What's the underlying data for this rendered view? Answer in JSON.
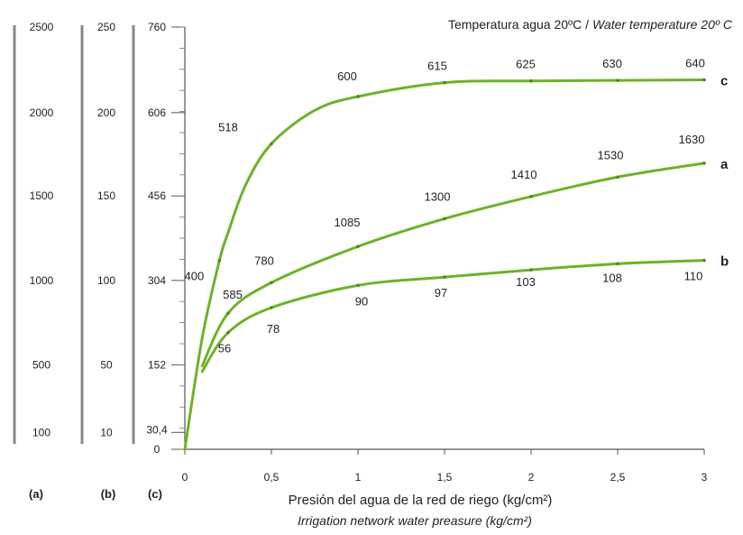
{
  "chart_data": {
    "type": "line",
    "title": "Temperatura agua 20ºC / ",
    "title_italic": "Water temperature 20º C",
    "xlabel": "Presión del agua de la red de riego (kg/cm²)",
    "xlabel_en": "Irrigation network water preasure (kg/cm²)",
    "x_ticks": [
      "0",
      "0,5",
      "1",
      "1,5",
      "2",
      "2,5",
      "3"
    ],
    "x_tick_values": [
      0,
      0.5,
      1,
      1.5,
      2,
      2.5,
      3
    ],
    "xlim": [
      0,
      3
    ],
    "y_scales": [
      {
        "name": "(a)",
        "ticks": [
          "100",
          "500",
          "1000",
          "1500",
          "2000",
          "2500"
        ],
        "tick_values": [
          30.4,
          152,
          304,
          456,
          606,
          760
        ]
      },
      {
        "name": "(b)",
        "ticks": [
          "10",
          "50",
          "100",
          "150",
          "200",
          "250"
        ],
        "tick_values": [
          30.4,
          152,
          304,
          456,
          606,
          760
        ]
      },
      {
        "name": "(c)",
        "ticks": [
          "0",
          "30,4",
          "152",
          "304",
          "456",
          "606",
          "760"
        ],
        "tick_values": [
          0,
          30.4,
          152,
          304,
          456,
          606,
          760
        ]
      }
    ],
    "ylim": [
      0,
      760
    ],
    "series": [
      {
        "name": "a",
        "color": "#6fb12b",
        "x": [
          0.1,
          0.25,
          0.5,
          1,
          1.5,
          2,
          2.5,
          3
        ],
        "y": [
          150,
          245,
          300,
          365,
          415,
          455,
          490,
          515
        ],
        "labels": [
          {
            "text": "585",
            "x": 0.25,
            "y": 245
          },
          {
            "text": "780",
            "x": 0.5,
            "y": 300
          },
          {
            "text": "1085",
            "x": 1,
            "y": 365
          },
          {
            "text": "1300",
            "x": 1.5,
            "y": 415
          },
          {
            "text": "1410",
            "x": 2,
            "y": 455
          },
          {
            "text": "1530",
            "x": 2.5,
            "y": 490
          },
          {
            "text": "1630",
            "x": 3,
            "y": 515
          }
        ]
      },
      {
        "name": "b",
        "color": "#6fb12b",
        "x": [
          0.1,
          0.25,
          0.5,
          1,
          1.5,
          2,
          2.5,
          3
        ],
        "y": [
          140,
          210,
          255,
          295,
          310,
          323,
          334,
          340
        ],
        "labels": [
          {
            "text": "56",
            "x": 0.25,
            "y": 210
          },
          {
            "text": "78",
            "x": 0.5,
            "y": 255
          },
          {
            "text": "90",
            "x": 1,
            "y": 295
          },
          {
            "text": "97",
            "x": 1.5,
            "y": 310
          },
          {
            "text": "103",
            "x": 2,
            "y": 323
          },
          {
            "text": "108",
            "x": 2.5,
            "y": 334
          },
          {
            "text": "110",
            "x": 3,
            "y": 340
          }
        ]
      },
      {
        "name": "c",
        "color": "#6fb12b",
        "x": [
          0,
          0.1,
          0.2,
          0.25,
          0.35,
          0.5,
          0.75,
          1,
          1.5,
          2,
          2.5,
          3
        ],
        "y": [
          0,
          200,
          340,
          390,
          475,
          550,
          610,
          635,
          660,
          663,
          664,
          665
        ],
        "labels": [
          {
            "text": "400",
            "x": 0.2,
            "y": 340
          },
          {
            "text": "518",
            "x": 0.5,
            "y": 550
          },
          {
            "text": "600",
            "x": 1,
            "y": 635
          },
          {
            "text": "615",
            "x": 1.5,
            "y": 660
          },
          {
            "text": "625",
            "x": 2,
            "y": 663
          },
          {
            "text": "630",
            "x": 2.5,
            "y": 664
          },
          {
            "text": "640",
            "x": 3,
            "y": 665
          }
        ]
      }
    ],
    "grid": false,
    "legend": "none"
  }
}
